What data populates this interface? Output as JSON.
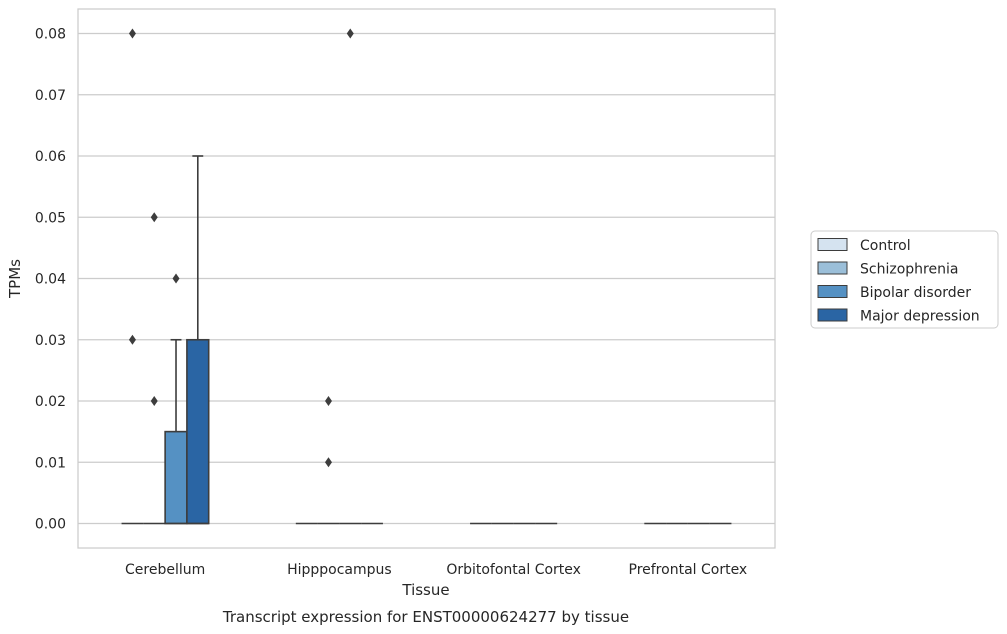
{
  "chart_data": {
    "type": "box",
    "xlabel": "Tissue",
    "ylabel": "TPMs",
    "caption": "Transcript expression for ENST00000624277 by tissue",
    "ylim": [
      -0.004,
      0.084
    ],
    "yticks": [
      0.0,
      0.01,
      0.02,
      0.03,
      0.04,
      0.05,
      0.06,
      0.07,
      0.08
    ],
    "ytick_labels": [
      "0.00",
      "0.01",
      "0.02",
      "0.03",
      "0.04",
      "0.05",
      "0.06",
      "0.07",
      "0.08"
    ],
    "grid": "horizontal",
    "legend_position": "right",
    "categories": [
      "Cerebellum",
      "Hipppocampus",
      "Orbitofontal Cortex",
      "Prefrontal Cortex"
    ],
    "series": [
      {
        "name": "Control",
        "color": "#d5e3f0",
        "boxes": [
          {
            "category": "Cerebellum",
            "q1": 0,
            "median": 0,
            "q3": 0,
            "whisker_low": 0,
            "whisker_high": 0,
            "outliers": [
              0.03,
              0.08
            ]
          },
          {
            "category": "Hipppocampus",
            "q1": 0,
            "median": 0,
            "q3": 0,
            "whisker_low": 0,
            "whisker_high": 0,
            "outliers": []
          },
          {
            "category": "Orbitofontal Cortex",
            "q1": 0,
            "median": 0,
            "q3": 0,
            "whisker_low": 0,
            "whisker_high": 0,
            "outliers": []
          },
          {
            "category": "Prefrontal Cortex",
            "q1": 0,
            "median": 0,
            "q3": 0,
            "whisker_low": 0,
            "whisker_high": 0,
            "outliers": []
          }
        ]
      },
      {
        "name": "Schizophrenia",
        "color": "#9bbfd9",
        "boxes": [
          {
            "category": "Cerebellum",
            "q1": 0,
            "median": 0,
            "q3": 0,
            "whisker_low": 0,
            "whisker_high": 0,
            "outliers": [
              0.02,
              0.05
            ]
          },
          {
            "category": "Hipppocampus",
            "q1": 0,
            "median": 0,
            "q3": 0,
            "whisker_low": 0,
            "whisker_high": 0,
            "outliers": [
              0.01,
              0.02
            ]
          },
          {
            "category": "Orbitofontal Cortex",
            "q1": 0,
            "median": 0,
            "q3": 0,
            "whisker_low": 0,
            "whisker_high": 0,
            "outliers": []
          },
          {
            "category": "Prefrontal Cortex",
            "q1": 0,
            "median": 0,
            "q3": 0,
            "whisker_low": 0,
            "whisker_high": 0,
            "outliers": []
          }
        ]
      },
      {
        "name": "Bipolar disorder",
        "color": "#5591c3",
        "boxes": [
          {
            "category": "Cerebellum",
            "q1": 0,
            "median": 0,
            "q3": 0.015,
            "whisker_low": 0,
            "whisker_high": 0.03,
            "outliers": [
              0.04
            ]
          },
          {
            "category": "Hipppocampus",
            "q1": 0,
            "median": 0,
            "q3": 0,
            "whisker_low": 0,
            "whisker_high": 0,
            "outliers": [
              0.08
            ]
          },
          {
            "category": "Orbitofontal Cortex",
            "q1": 0,
            "median": 0,
            "q3": 0,
            "whisker_low": 0,
            "whisker_high": 0,
            "outliers": []
          },
          {
            "category": "Prefrontal Cortex",
            "q1": 0,
            "median": 0,
            "q3": 0,
            "whisker_low": 0,
            "whisker_high": 0,
            "outliers": []
          }
        ]
      },
      {
        "name": "Major depression",
        "color": "#2a65a4",
        "boxes": [
          {
            "category": "Cerebellum",
            "q1": 0,
            "median": 0,
            "q3": 0.03,
            "whisker_low": 0,
            "whisker_high": 0.06,
            "outliers": []
          },
          {
            "category": "Hipppocampus",
            "q1": 0,
            "median": 0,
            "q3": 0,
            "whisker_low": 0,
            "whisker_high": 0,
            "outliers": []
          },
          {
            "category": "Orbitofontal Cortex",
            "q1": 0,
            "median": 0,
            "q3": 0,
            "whisker_low": 0,
            "whisker_high": 0,
            "outliers": []
          },
          {
            "category": "Prefrontal Cortex",
            "q1": 0,
            "median": 0,
            "q3": 0,
            "whisker_low": 0,
            "whisker_high": 0,
            "outliers": []
          }
        ]
      }
    ]
  }
}
